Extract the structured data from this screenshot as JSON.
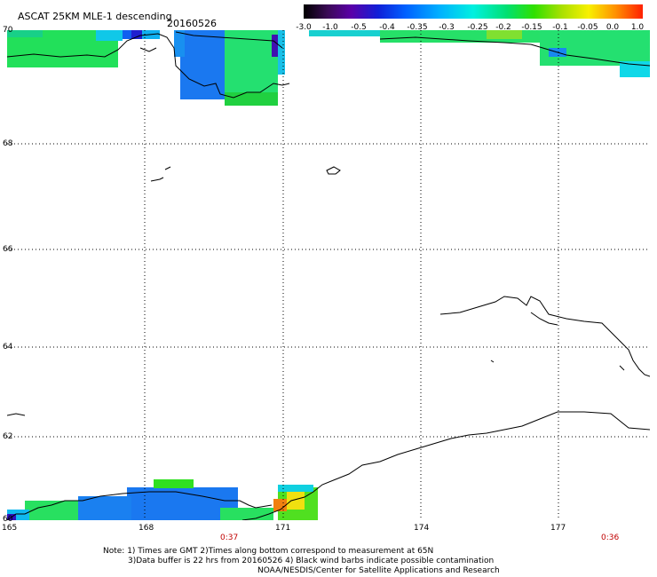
{
  "title": "ASCAT 25KM MLE-1 descending",
  "date": "20160526",
  "legend": {
    "ticks": [
      "-3.0",
      "-1.0",
      "-0.5",
      "-0.4",
      "-0.35",
      "-0.3",
      "-0.25",
      "-0.2",
      "-0.15",
      "-0.1",
      "-0.05",
      "0.0",
      "1.0"
    ]
  },
  "lat_labels": [
    "70",
    "68",
    "66",
    "64",
    "62",
    "60"
  ],
  "lon_labels": [
    "165",
    "168",
    "171",
    "174",
    "177"
  ],
  "times": [
    "0:37",
    "0:36"
  ],
  "notes": {
    "line1": "Note: 1) Times are GMT 2)Times along bottom correspond to measurement at 65N",
    "line2": "3)Data buffer is 22 hrs from 20160526 4) Black wind barbs indicate possible contamination",
    "line3": "NOAA/NESDIS/Center for Satellite Applications and Research"
  },
  "colors": {
    "coast": "#000000",
    "grid": "#000000",
    "time": "#c00000"
  }
}
